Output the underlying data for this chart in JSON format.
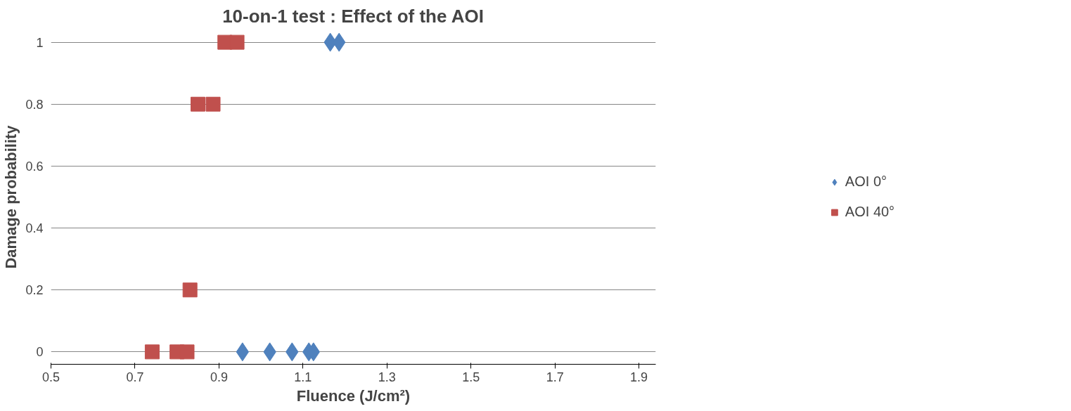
{
  "chart_data": {
    "type": "scatter",
    "title": "10-on-1 test : Effect of the AOI",
    "xlabel": "Fluence (J/cm²)",
    "ylabel": "Damage probability",
    "xlim": [
      0.5,
      1.94
    ],
    "xticks": [
      0.5,
      0.7,
      0.9,
      1.1,
      1.3,
      1.5,
      1.7,
      1.9
    ],
    "ylim": [
      0,
      1
    ],
    "yticks": [
      0,
      0.2,
      0.4,
      0.6,
      0.8,
      1
    ],
    "grid": "y",
    "legend": "right",
    "series": [
      {
        "name": "AOI 0°",
        "color": "#4f81bd",
        "marker": "diamond",
        "x": [
          0.956,
          1.021,
          1.074,
          1.114,
          1.125,
          1.165,
          1.186
        ],
        "values": [
          0,
          0,
          0,
          0,
          0,
          1,
          1
        ]
      },
      {
        "name": "AOI 40°",
        "color": "#c0504d",
        "marker": "square",
        "x": [
          0.741,
          0.8,
          0.824,
          0.831,
          0.85,
          0.886,
          0.914,
          0.943
        ],
        "values": [
          0,
          0,
          0,
          0.2,
          0.8,
          0.8,
          1,
          1
        ]
      }
    ]
  }
}
